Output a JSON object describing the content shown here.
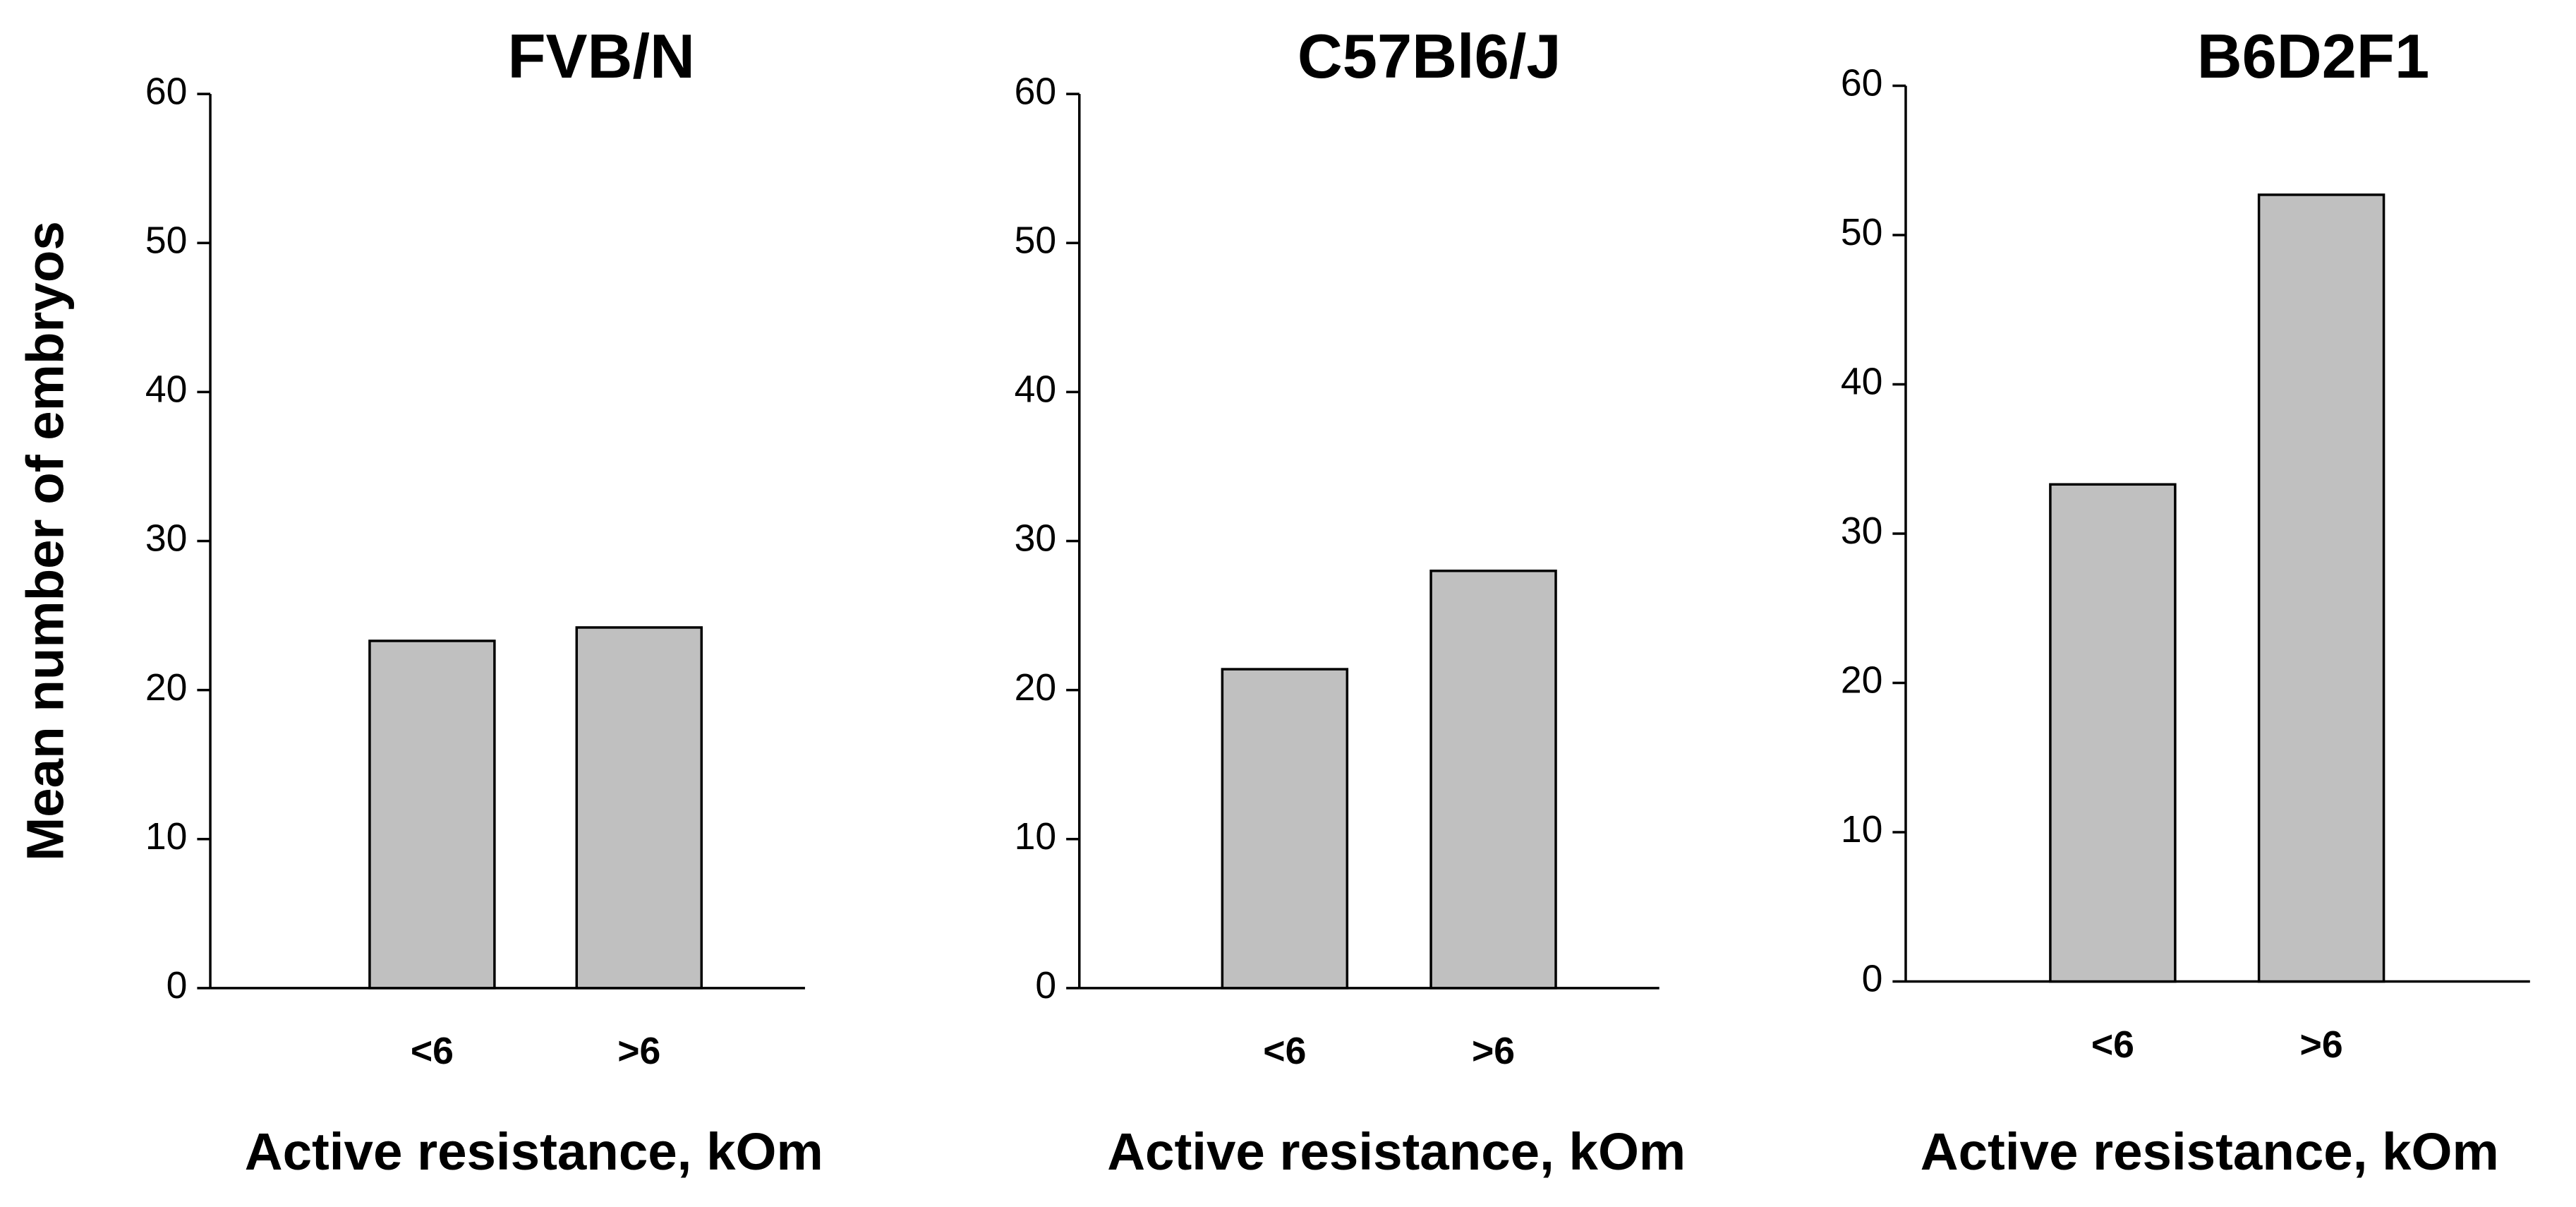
{
  "chart_data": [
    {
      "type": "bar",
      "title": "FVB/N",
      "y_label": "Mean number of embryos",
      "x_label": "Active resistance, kOm",
      "categories": [
        "<6",
        ">6"
      ],
      "values": [
        23.3,
        24.2
      ],
      "color": "#c0c0c0",
      "ylim": [
        0,
        60
      ],
      "yticks": [
        0,
        10,
        20,
        30,
        40,
        50,
        60
      ]
    },
    {
      "type": "bar",
      "title": "C57Bl6/J",
      "x_label": "Active resistance, kOm",
      "categories": [
        "<6",
        ">6"
      ],
      "values": [
        21.4,
        28.0
      ],
      "color": "#c0c0c0",
      "ylim": [
        0,
        60
      ],
      "yticks": [
        0,
        10,
        20,
        30,
        40,
        50,
        60
      ]
    },
    {
      "type": "bar",
      "title": "B6D2F1",
      "x_label": "Active resistance, kOm",
      "categories": [
        "<6",
        ">6"
      ],
      "values": [
        33.3,
        52.7
      ],
      "color": "#c0c0c0",
      "ylim": [
        0,
        60
      ],
      "yticks": [
        0,
        10,
        20,
        30,
        40,
        50,
        60
      ]
    }
  ]
}
